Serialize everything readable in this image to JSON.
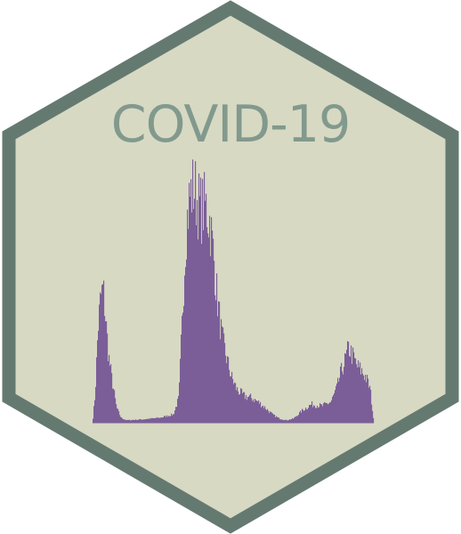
{
  "logo": {
    "title": "COVID-19",
    "colors": {
      "border": "#647a71",
      "fill": "#d7d9c3",
      "title_text": "#82998d",
      "bars": "#7b5e98"
    }
  }
}
